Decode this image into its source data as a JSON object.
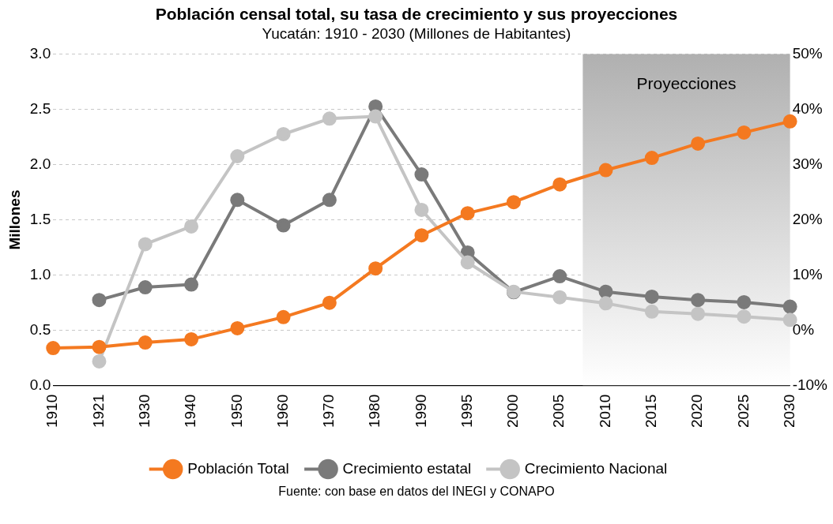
{
  "chart_data": {
    "type": "line",
    "title": "Población censal total, su tasa de crecimiento y sus proyecciones",
    "subtitle": "Yucatán: 1910 - 2030 (Millones de Habitantes)",
    "ylabel": "Millones",
    "categories": [
      "1910",
      "1921",
      "1930",
      "1940",
      "1950",
      "1960",
      "1970",
      "1980",
      "1990",
      "1995",
      "2000",
      "2005",
      "2010",
      "2015",
      "2020",
      "2025",
      "2030"
    ],
    "series": [
      {
        "name": "Población Total",
        "color": "#f47920",
        "values": [
          0.34,
          0.35,
          0.39,
          0.42,
          0.52,
          0.62,
          0.75,
          1.06,
          1.36,
          1.56,
          1.66,
          1.82,
          1.95,
          2.06,
          2.19,
          2.29,
          2.39
        ]
      },
      {
        "name": "Crecimiento estatal",
        "color": "#7a7a7a",
        "axis": "y2",
        "values": [
          null,
          5.5,
          7.8,
          8.3,
          23.6,
          19.0,
          23.6,
          40.5,
          28.2,
          14.1,
          6.9,
          9.8,
          7.0,
          6.1,
          5.5,
          5.1,
          4.3
        ]
      },
      {
        "name": "Crecimiento Nacional",
        "color": "#c4c4c4",
        "axis": "y2",
        "values": [
          null,
          -5.6,
          15.6,
          18.8,
          31.5,
          35.5,
          38.3,
          38.7,
          21.8,
          12.3,
          7.0,
          6.0,
          4.9,
          3.4,
          3.0,
          2.5,
          1.9
        ]
      }
    ],
    "ylim": [
      0,
      3
    ],
    "yticks": [
      {
        "value": 0,
        "label": "0.0"
      },
      0.5,
      {
        "value": 1,
        "label": "1.0"
      },
      1.5,
      {
        "value": 2,
        "label": "2.0"
      },
      2.5,
      {
        "value": 3,
        "label": "3.0"
      }
    ],
    "y2lim": [
      -10,
      50
    ],
    "y2ticks": [
      {
        "value": -10,
        "label": "-10%"
      },
      {
        "value": 0,
        "label": "0%"
      },
      {
        "value": 10,
        "label": "10%"
      },
      {
        "value": 20,
        "label": "20%"
      },
      {
        "value": 30,
        "label": "30%"
      },
      {
        "value": 40,
        "label": "40%"
      },
      {
        "value": 50,
        "label": "50%"
      }
    ],
    "bands": [
      {
        "axis": "x",
        "from": "2010",
        "to": "2030",
        "label": "Proyecciones",
        "color": "#b0b0b0"
      }
    ],
    "grid": "y",
    "legend": "bottom",
    "marker": "circle",
    "line_style": "solid",
    "annotations": [
      "Fuente: con base en datos del INEGI y CONAPO"
    ]
  }
}
